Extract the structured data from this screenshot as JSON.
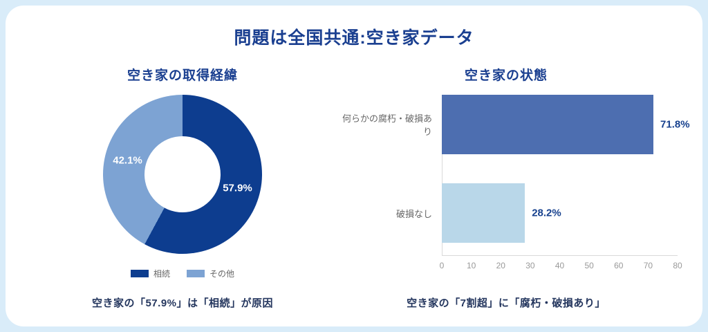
{
  "page_title": "問題は全国共通:空き家データ",
  "colors": {
    "background": "#d9ecf9",
    "card": "#ffffff",
    "heading": "#1a3f90",
    "caption": "#24365e",
    "value_label": "#17418e",
    "pie_segments": [
      "#0d3d8f",
      "#7da3d3"
    ],
    "bar_segments": [
      "#4d6eb0",
      "#b9d7e9"
    ]
  },
  "chart_data": [
    {
      "type": "pie",
      "subtype": "donut",
      "title": "空き家の取得経緯",
      "labels": [
        "相続",
        "その他"
      ],
      "values": [
        57.9,
        42.1
      ],
      "value_labels": [
        "57.9%",
        "42.1%"
      ],
      "legend_position": "bottom",
      "caption": "空き家の「57.9%」は「相続」が原因"
    },
    {
      "type": "bar",
      "orientation": "horizontal",
      "title": "空き家の状態",
      "categories": [
        "何らかの腐朽・破損あり",
        "破損なし"
      ],
      "values": [
        71.8,
        28.2
      ],
      "value_labels": [
        "71.8%",
        "28.2%"
      ],
      "xlim": [
        0,
        80
      ],
      "xticks": [
        0,
        10,
        20,
        30,
        40,
        50,
        60,
        70,
        80
      ],
      "grid": false,
      "caption": "空き家の「7割超」に「腐朽・破損あり」"
    }
  ]
}
